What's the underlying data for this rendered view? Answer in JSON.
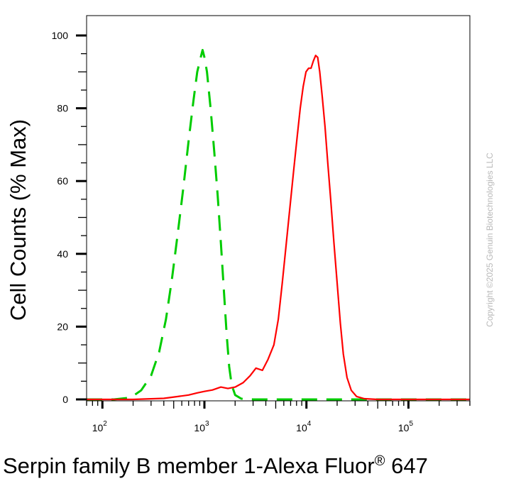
{
  "chart_data": {
    "type": "line",
    "title": "",
    "xlabel": "Serpin family B member 1-Alexa Fluor",
    "xlabel_superscript": "®",
    "xlabel_suffix": " 647",
    "ylabel": "Cell Counts (% Max)",
    "x_scale": "log",
    "xlim": [
      70,
      400000
    ],
    "ylim": [
      0,
      100
    ],
    "y_ticks": [
      0,
      20,
      40,
      60,
      80,
      100
    ],
    "x_ticks": [
      {
        "value": 100,
        "base": "10",
        "exp": "2"
      },
      {
        "value": 1000,
        "base": "10",
        "exp": "3"
      },
      {
        "value": 10000,
        "base": "10",
        "exp": "4"
      },
      {
        "value": 100000,
        "base": "10",
        "exp": "5"
      }
    ],
    "grid": false,
    "legend": "none",
    "series": [
      {
        "color": "#00cc00",
        "style": "dashed",
        "points": [
          [
            70,
            0
          ],
          [
            130,
            0
          ],
          [
            190,
            0.5
          ],
          [
            240,
            2.5
          ],
          [
            300,
            6.5
          ],
          [
            360,
            13
          ],
          [
            420,
            22
          ],
          [
            480,
            33
          ],
          [
            550,
            46
          ],
          [
            620,
            58
          ],
          [
            700,
            71
          ],
          [
            780,
            82
          ],
          [
            850,
            90
          ],
          [
            920,
            94
          ],
          [
            960,
            96
          ],
          [
            1000,
            94
          ],
          [
            1060,
            90
          ],
          [
            1150,
            80
          ],
          [
            1250,
            68
          ],
          [
            1350,
            56
          ],
          [
            1450,
            43
          ],
          [
            1550,
            30
          ],
          [
            1650,
            18
          ],
          [
            1750,
            9
          ],
          [
            1850,
            4
          ],
          [
            2000,
            1.2
          ],
          [
            2300,
            0.2
          ],
          [
            3000,
            0
          ],
          [
            400000,
            0
          ]
        ]
      },
      {
        "color": "#ff0000",
        "style": "solid",
        "points": [
          [
            70,
            0
          ],
          [
            200,
            0
          ],
          [
            400,
            0.3
          ],
          [
            550,
            0.8
          ],
          [
            700,
            1.2
          ],
          [
            850,
            1.8
          ],
          [
            1000,
            2.2
          ],
          [
            1200,
            2.6
          ],
          [
            1450,
            3.4
          ],
          [
            1700,
            3.0
          ],
          [
            2000,
            3.4
          ],
          [
            2400,
            4.6
          ],
          [
            2800,
            6.5
          ],
          [
            3200,
            8.6
          ],
          [
            3700,
            8.0
          ],
          [
            4200,
            11
          ],
          [
            4800,
            15
          ],
          [
            5300,
            22
          ],
          [
            5800,
            32
          ],
          [
            6300,
            42
          ],
          [
            6900,
            53
          ],
          [
            7500,
            63
          ],
          [
            8100,
            72
          ],
          [
            8700,
            80
          ],
          [
            9300,
            86
          ],
          [
            9900,
            90
          ],
          [
            10500,
            91
          ],
          [
            11100,
            91
          ],
          [
            11700,
            93
          ],
          [
            12300,
            94.5
          ],
          [
            12900,
            94
          ],
          [
            13500,
            90
          ],
          [
            14300,
            83
          ],
          [
            15200,
            75
          ],
          [
            16200,
            65
          ],
          [
            17300,
            55
          ],
          [
            18600,
            43
          ],
          [
            20000,
            32
          ],
          [
            21500,
            21
          ],
          [
            23000,
            12.5
          ],
          [
            25000,
            6
          ],
          [
            27500,
            2.5
          ],
          [
            31000,
            0.8
          ],
          [
            37000,
            0.2
          ],
          [
            50000,
            0
          ],
          [
            400000,
            0
          ]
        ]
      }
    ]
  },
  "copyright": "Copyright ©2025 Genuin Biotechnologies LLC"
}
